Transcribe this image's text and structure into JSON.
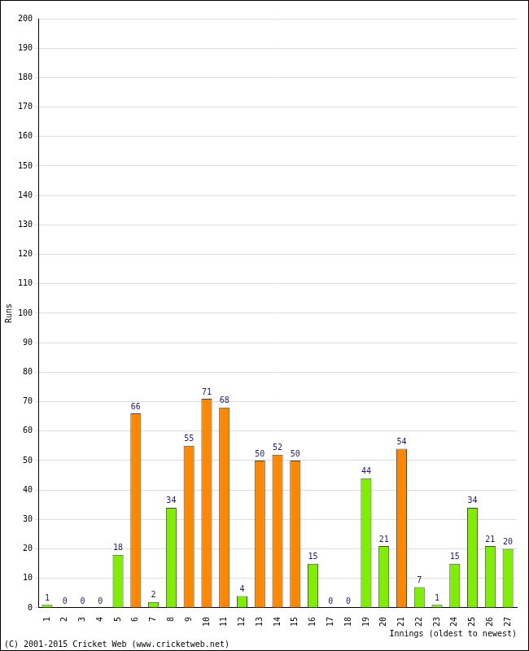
{
  "chart_data": {
    "type": "bar",
    "x_label": "Innings (oldest to newest)",
    "y_label": "Runs",
    "annotations": [
      "(C) 2001-2015 Cricket Web (www.cricketweb.net)"
    ],
    "categories": [
      "1",
      "2",
      "3",
      "4",
      "5",
      "6",
      "7",
      "8",
      "9",
      "10",
      "11",
      "12",
      "13",
      "14",
      "15",
      "16",
      "17",
      "18",
      "19",
      "20",
      "21",
      "22",
      "23",
      "24",
      "25",
      "26",
      "27"
    ],
    "values": [
      1,
      0,
      0,
      0,
      18,
      66,
      2,
      34,
      55,
      71,
      68,
      4,
      50,
      52,
      50,
      15,
      0,
      0,
      44,
      21,
      54,
      7,
      1,
      15,
      34,
      21,
      20
    ],
    "colors": [
      "#80ee00",
      "#80ee00",
      "#80ee00",
      "#80ee00",
      "#80ee00",
      "#ff8800",
      "#80ee00",
      "#80ee00",
      "#ff8800",
      "#ff8800",
      "#ff8800",
      "#80ee00",
      "#ff8800",
      "#ff8800",
      "#ff8800",
      "#80ee00",
      "#80ee00",
      "#80ee00",
      "#80ee00",
      "#80ee00",
      "#ff8800",
      "#80ee00",
      "#80ee00",
      "#80ee00",
      "#80ee00",
      "#80ee00",
      "#80ee00"
    ],
    "ylim": [
      0,
      200
    ],
    "yticks": [
      0,
      10,
      20,
      30,
      40,
      50,
      60,
      70,
      80,
      90,
      100,
      110,
      120,
      130,
      140,
      150,
      160,
      170,
      180,
      190,
      200
    ],
    "grid": true,
    "data_labels": true
  }
}
